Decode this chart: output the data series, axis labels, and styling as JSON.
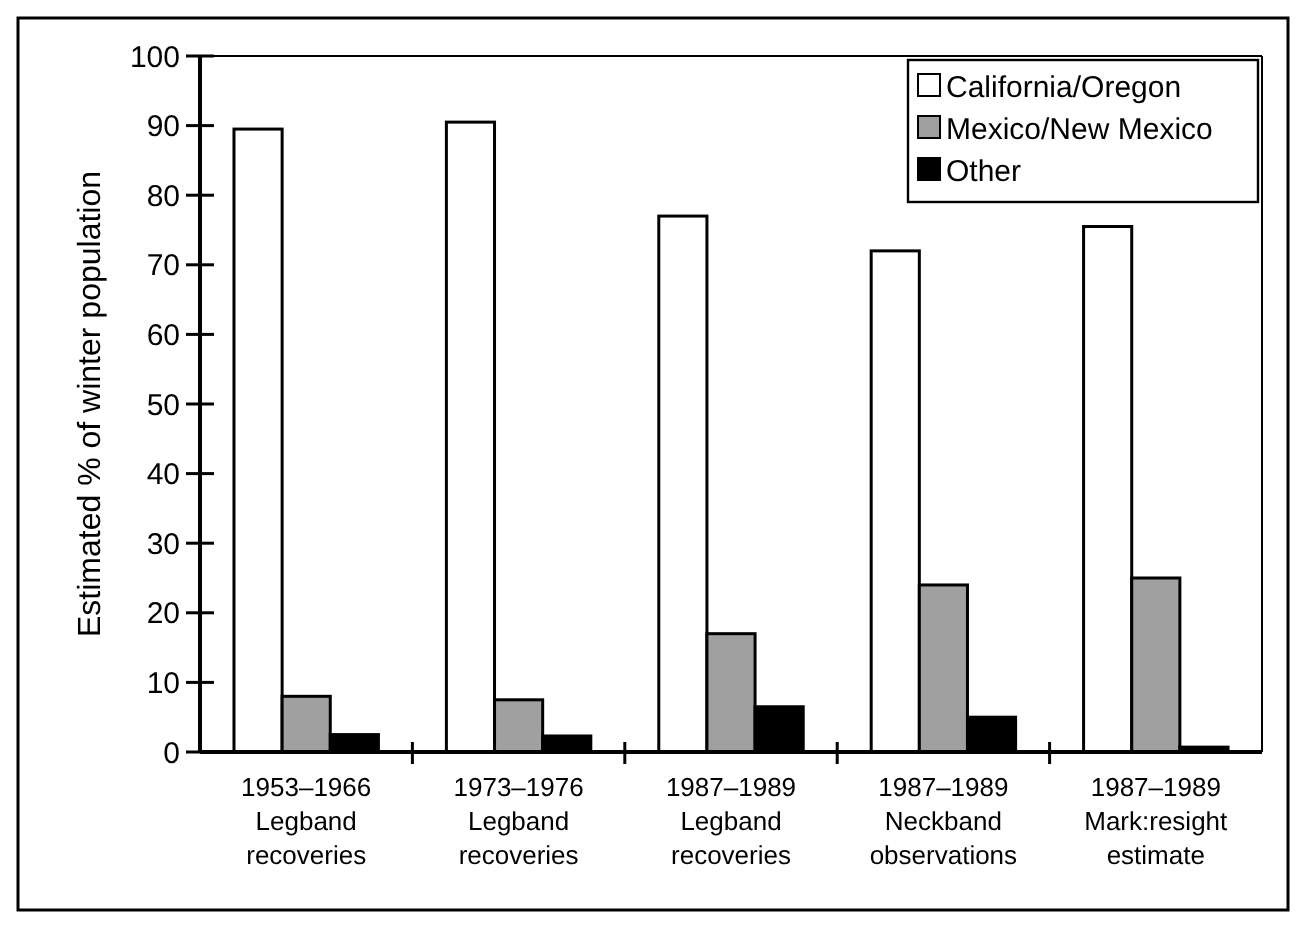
{
  "chart_data": {
    "type": "bar",
    "ylabel": "Estimated % of winter population",
    "categories": [
      "1953–1966\nLegband\nrecoveries",
      "1973–1976\nLegband\nrecoveries",
      "1987–1989\nLegband\nrecoveries",
      "1987–1989\nNeckband\nobservations",
      "1987–1989\nMark:resight\nestimate"
    ],
    "series": [
      {
        "name": "California/Oregon",
        "color": "#ffffff",
        "values": [
          89.5,
          90.5,
          77,
          72,
          75.5
        ]
      },
      {
        "name": "Mexico/New Mexico",
        "color": "#a0a0a0",
        "values": [
          8,
          7.5,
          17,
          24,
          25
        ]
      },
      {
        "name": "Other",
        "color": "#000000",
        "values": [
          2.5,
          2.3,
          6.5,
          5,
          0.7
        ]
      }
    ],
    "ylim": [
      0,
      100
    ],
    "yticks": [
      0,
      10,
      20,
      30,
      40,
      50,
      60,
      70,
      80,
      90,
      100
    ],
    "legend": "top right"
  }
}
